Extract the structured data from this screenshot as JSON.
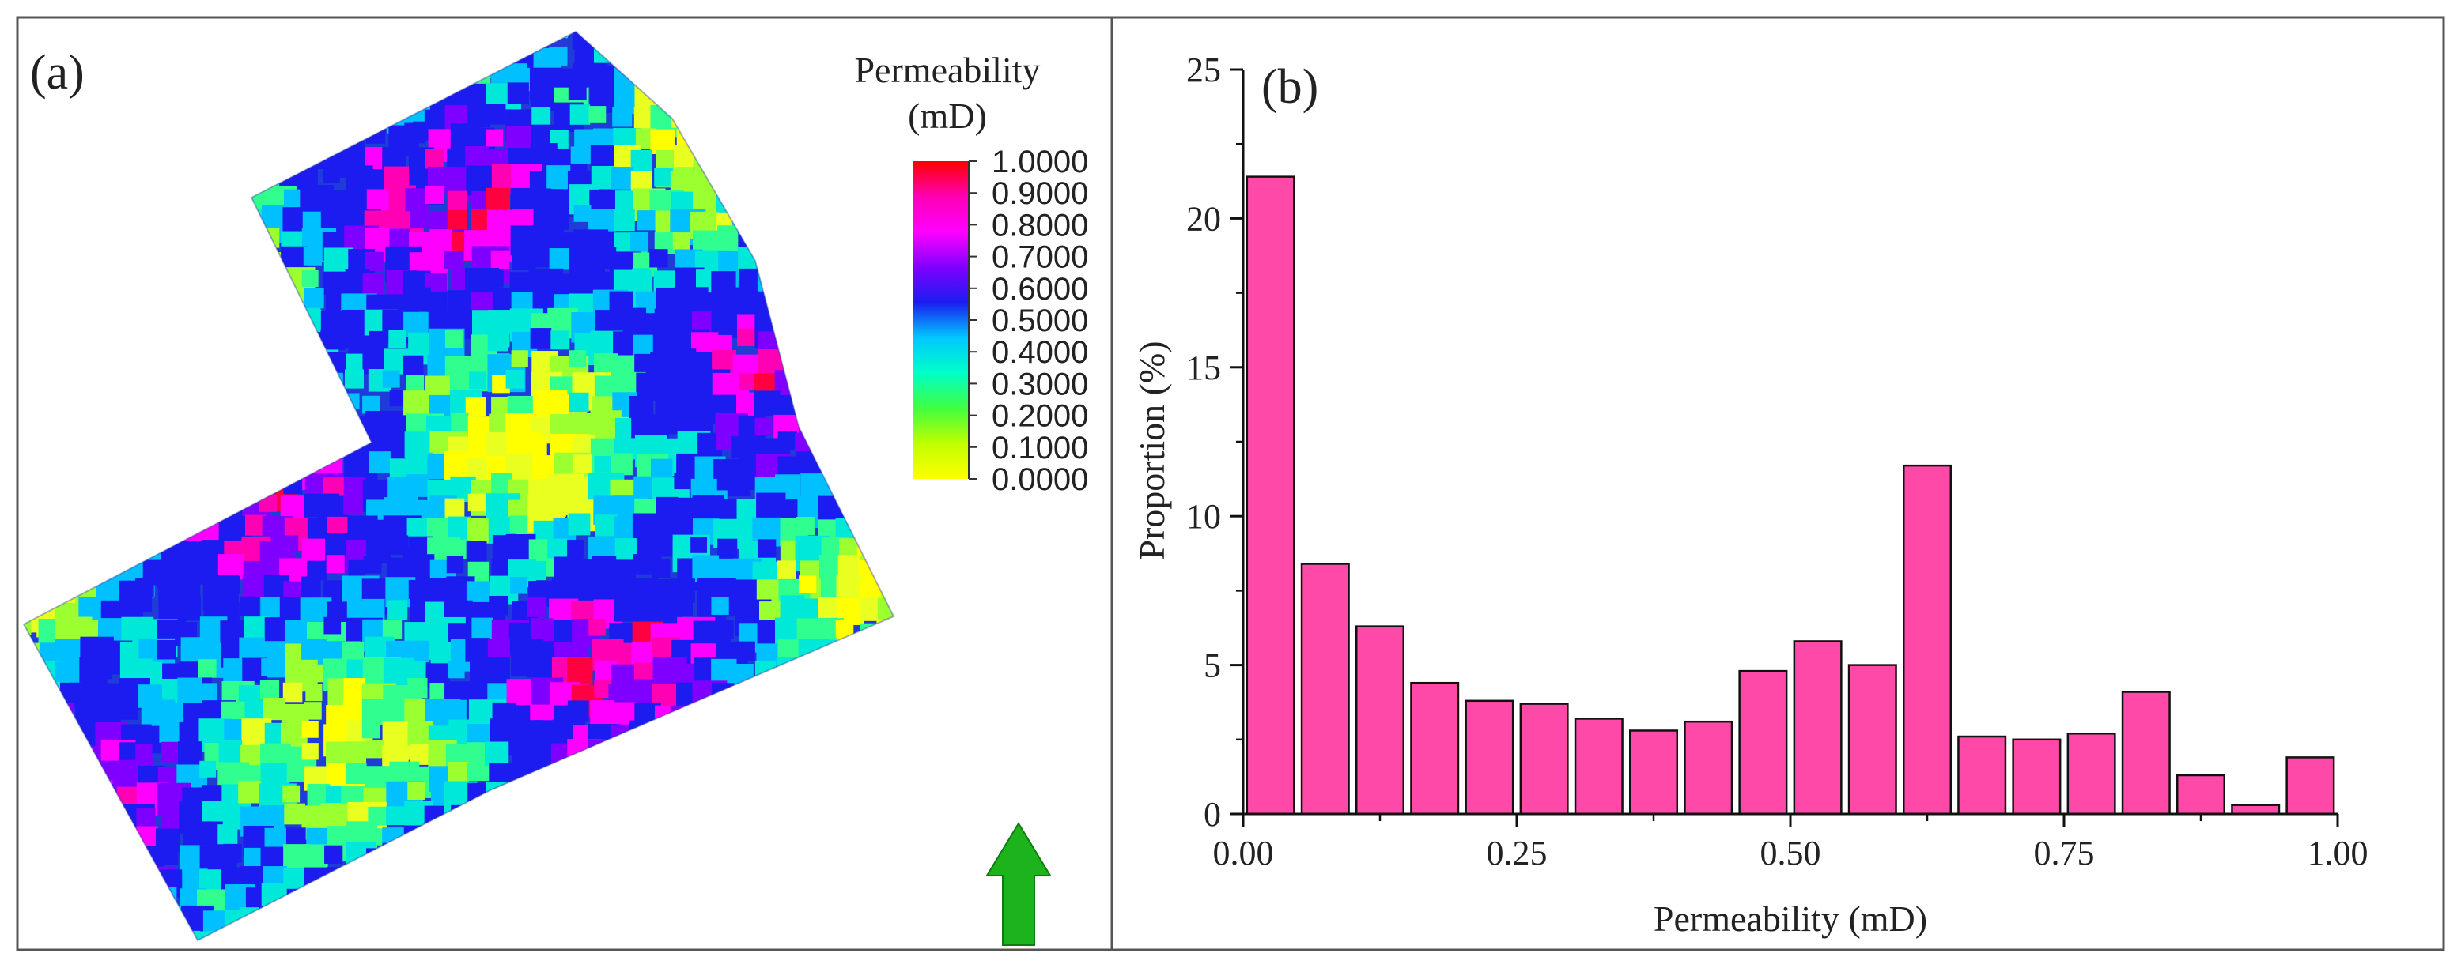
{
  "panel_a": {
    "label": "(a)",
    "legend_title_line1": "Permeability",
    "legend_title_line2": "(mD)",
    "colorbar_ticks": [
      "1.0000",
      "0.9000",
      "0.8000",
      "0.7000",
      "0.6000",
      "0.5000",
      "0.4000",
      "0.3000",
      "0.2000",
      "0.1000",
      "0.0000"
    ],
    "colorbar_colors": [
      "#ff0000",
      "#ff00b4",
      "#ff00ff",
      "#8000ff",
      "#1c1cf0",
      "#00c8ff",
      "#00ffc8",
      "#40ff40",
      "#c0ff00",
      "#ffff00"
    ],
    "north_arrow_icon": "north-arrow-icon",
    "north_arrow_color": "#1db31d"
  },
  "chart_data": {
    "type": "bar",
    "panel_label": "(b)",
    "title": "",
    "xlabel": "Permeability (mD)",
    "ylabel": "Proportion (%)",
    "xlim": [
      0,
      1
    ],
    "ylim": [
      0,
      25
    ],
    "xticks": [
      0,
      0.25,
      0.5,
      0.75,
      1
    ],
    "xtick_labels": [
      "0.00",
      "0.25",
      "0.50",
      "0.75",
      "1.00"
    ],
    "yticks": [
      0,
      5,
      10,
      15,
      20,
      25
    ],
    "ytick_labels": [
      "0",
      "5",
      "10",
      "15",
      "20",
      "25"
    ],
    "bin_width": 0.05,
    "bin_starts": [
      0,
      0.05,
      0.1,
      0.15,
      0.2,
      0.25,
      0.3,
      0.35,
      0.4,
      0.45,
      0.5,
      0.55,
      0.6,
      0.65,
      0.7,
      0.75,
      0.8,
      0.85,
      0.9,
      0.95
    ],
    "values": [
      21.4,
      8.4,
      6.3,
      4.4,
      3.8,
      3.7,
      3.2,
      2.8,
      3.1,
      4.8,
      5.8,
      5.0,
      11.7,
      2.6,
      2.5,
      2.7,
      4.1,
      1.3,
      0.3,
      1.9
    ],
    "bar_color": "#ff49a8"
  }
}
